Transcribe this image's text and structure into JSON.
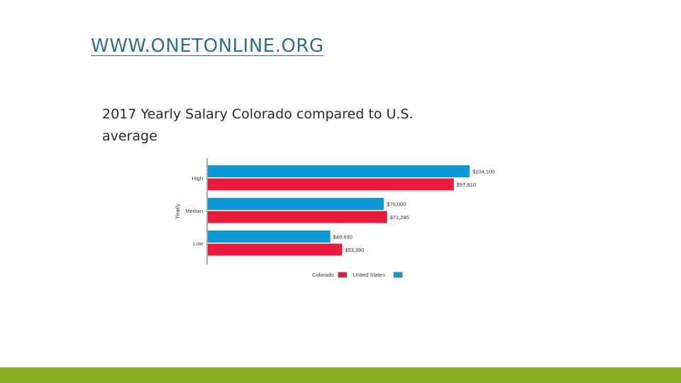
{
  "slide": {
    "link_text": "WWW.ONETONLINE.ORG",
    "subtitle": "2017 Yearly Salary Colorado compared to U.S. average",
    "accent_color": "#8aae23",
    "link_color": "#2f6f8f"
  },
  "chart_data": {
    "type": "bar",
    "orientation": "horizontal",
    "categories": [
      "High",
      "Median",
      "Low"
    ],
    "ylabel": "Yearly",
    "xlim": [
      0,
      110000
    ],
    "series": [
      {
        "name": "United States",
        "color": "#0d98d6",
        "values": [
          104100,
          70000,
          48690
        ],
        "labels": [
          "$104,100",
          "$70,000",
          "$48,690"
        ]
      },
      {
        "name": "Colorado",
        "color": "#e91b3d",
        "values": [
          97810,
          71280,
          53390
        ],
        "labels": [
          "$97,810",
          "$71,280",
          "$53,390"
        ]
      }
    ],
    "legend": {
      "placement": "bottom",
      "order": [
        "Colorado",
        "United States"
      ]
    },
    "grid": false
  }
}
